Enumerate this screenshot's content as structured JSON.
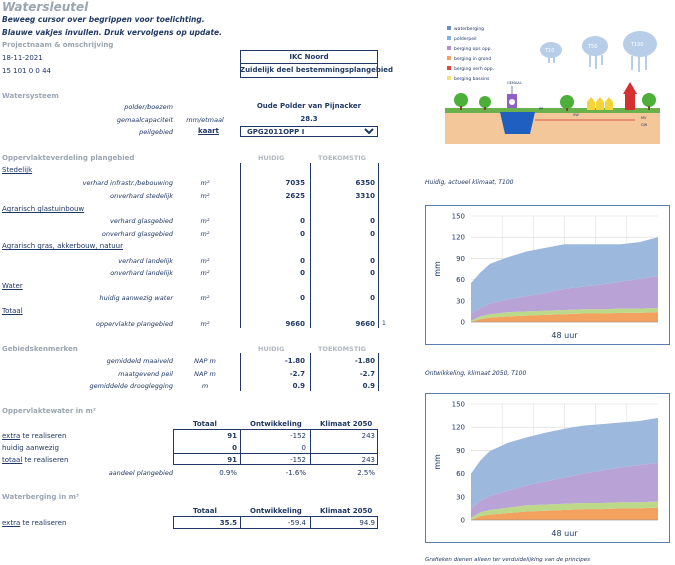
{
  "title": "Watersleutel",
  "instructions": [
    "Beweeg cursor over begrippen voor toelichting.",
    "Blauwe vakjes invullen. Druk vervolgens op update."
  ],
  "project": {
    "heading": "Projectnaam & omschrijving",
    "date": "18-11-2021",
    "code": "15 101 0 0 44",
    "name": "IKC Noord",
    "description": "Zuidelijk deel bestemmingsplangebied"
  },
  "watersysteem": {
    "heading": "Watersysteem",
    "polder_label": "polder/boezem",
    "polder_value": "Oude Polder van Pijnacker",
    "gemaal_label": "gemaalcapaciteit",
    "gemaal_unit": "mm/etmaal",
    "gemaal_value": "28.3",
    "peilgebied_label": "peilgebied",
    "kaart_link": "kaart",
    "peilgebied_value": "GPG2011OPP I"
  },
  "oppervlakte": {
    "heading": "Oppervlakteverdeling plangebied",
    "col_huidig": "HUIDIG",
    "col_toekomstig": "TOEKOMSTIG",
    "stedelijk": "Stedelijk",
    "glastuinbouw": "Agrarisch glastuinbouw",
    "gras": "Agrarisch gras, akkerbouw, natuur",
    "water": "Water",
    "totaal": "Totaal",
    "unit": "m²",
    "rows": [
      {
        "label": "verhard infrastr./bebouwing",
        "huidig": "7035",
        "toekomstig": "6350"
      },
      {
        "label": "onverhard stedelijk",
        "huidig": "2625",
        "toekomstig": "3310"
      },
      {
        "label": "verhard glasgebied",
        "huidig": "0",
        "toekomstig": "0"
      },
      {
        "label": "onverhard glasgebied",
        "huidig": "0",
        "toekomstig": "0"
      },
      {
        "label": "verhard landelijk",
        "huidig": "0",
        "toekomstig": "0"
      },
      {
        "label": "onverhard landelijk",
        "huidig": "0",
        "toekomstig": "0"
      },
      {
        "label": "huidig aanwezig water",
        "huidig": "0",
        "toekomstig": "0"
      },
      {
        "label": "oppervlakte plangebied",
        "huidig": "9660",
        "toekomstig": "9660"
      }
    ],
    "trailing_mark": "1"
  },
  "gebied": {
    "heading": "Gebiedskenmerken",
    "col_huidig": "HUIDIG",
    "col_toekomstig": "TOEKOMSTIG",
    "rows": [
      {
        "label": "gemiddeld maaiveld",
        "unit": "NAP m",
        "huidig": "-1.80",
        "toekomstig": "-1.80"
      },
      {
        "label": "maatgevend peil",
        "unit": "NAP m",
        "huidig": "-2.7",
        "toekomstig": "-2.7"
      },
      {
        "label": "gemiddelde drooglegging",
        "unit": "m",
        "huidig": "0.9",
        "toekomstig": "0.9"
      }
    ]
  },
  "oppwater": {
    "heading": "Oppervlaktewater in m²",
    "cols": [
      "Totaal",
      "Ontwikkeling",
      "Klimaat 2050"
    ],
    "extra_link": "extra",
    "extra_rest": " te realiseren",
    "huidig_label": "huidig aanwezig",
    "totaal_link": "totaal",
    "totaal_rest": " te realiseren",
    "aandeel_label": "aandeel plangebied",
    "extra": [
      "91",
      "-152",
      "243"
    ],
    "huidig": [
      "0",
      "0",
      ""
    ],
    "totaal": [
      "91",
      "-152",
      "243"
    ],
    "aandeel": [
      "0.9%",
      "-1.6%",
      "2.5%"
    ]
  },
  "waterberging": {
    "heading": "Waterberging in m³",
    "cols": [
      "Totaal",
      "Ontwikkeling",
      "Klimaat 2050"
    ],
    "extra_link": "extra",
    "extra_rest": " te realiseren",
    "values": [
      "35.5",
      "-59.4",
      "94.9"
    ]
  },
  "diagram": {
    "legend": [
      {
        "label": "waterberging",
        "color": "#6a8fc7"
      },
      {
        "label": "polderpeil",
        "color": "#7fb3e0"
      },
      {
        "label": "berging ops opp.",
        "color": "#b48fd1"
      },
      {
        "label": "berging in grond",
        "color": "#f2a15e"
      },
      {
        "label": "berging verh opp.",
        "color": "#d94a3a"
      },
      {
        "label": "berging bassins",
        "color": "#f5e27a"
      }
    ],
    "clouds": [
      "T10",
      "T50",
      "T100"
    ],
    "labels": {
      "gemaal": "GEMAAL",
      "pp": "PP",
      "mv": "MV",
      "gw": "GW",
      "sw": "SW"
    }
  },
  "chart_notes": {
    "chart1": "Huidig, actueel klimaat, T100",
    "chart2": "Ontwikkeling, klimaat 2050, T100",
    "footer": "Grafieken dienen alleen ter verduidelijking van de principes"
  },
  "chart_data": [
    {
      "type": "area",
      "ylabel": "mm",
      "xlabel": "48 uur",
      "ylim": [
        0,
        150
      ],
      "yticks": [
        0,
        30,
        60,
        90,
        120,
        150
      ],
      "grid": true,
      "x": [
        0,
        0.05,
        0.1,
        0.2,
        0.3,
        0.4,
        0.5,
        0.6,
        0.7,
        0.8,
        0.9,
        1.0
      ],
      "series": [
        {
          "color": "#f2a15e",
          "values": [
            0,
            4,
            6,
            8,
            9,
            10,
            11,
            12,
            12,
            13,
            13,
            14
          ]
        },
        {
          "color": "#bcd98a",
          "values": [
            2,
            4,
            5,
            6,
            6,
            6,
            6,
            6,
            6,
            6,
            6,
            6
          ]
        },
        {
          "color": "#b9a2d6",
          "values": [
            10,
            12,
            15,
            18,
            22,
            25,
            30,
            32,
            35,
            38,
            42,
            45
          ]
        },
        {
          "color": "#9db8dd",
          "values": [
            43,
            50,
            56,
            60,
            63,
            64,
            63,
            60,
            57,
            53,
            52,
            55
          ]
        }
      ]
    },
    {
      "type": "area",
      "ylabel": "mm",
      "xlabel": "48 uur",
      "ylim": [
        0,
        150
      ],
      "yticks": [
        0,
        30,
        60,
        90,
        120,
        150
      ],
      "grid": true,
      "x": [
        0,
        0.05,
        0.1,
        0.2,
        0.3,
        0.4,
        0.5,
        0.6,
        0.7,
        0.8,
        0.9,
        1.0
      ],
      "series": [
        {
          "color": "#f2a15e",
          "values": [
            0,
            5,
            7,
            9,
            11,
            12,
            13,
            14,
            14,
            15,
            15,
            16
          ]
        },
        {
          "color": "#bcd98a",
          "values": [
            3,
            5,
            6,
            7,
            8,
            8,
            8,
            8,
            8,
            8,
            8,
            8
          ]
        },
        {
          "color": "#b9a2d6",
          "values": [
            12,
            15,
            18,
            22,
            26,
            30,
            34,
            38,
            42,
            45,
            48,
            50
          ]
        },
        {
          "color": "#9db8dd",
          "values": [
            45,
            52,
            58,
            62,
            62,
            63,
            63,
            62,
            60,
            58,
            57,
            58
          ]
        }
      ]
    }
  ]
}
